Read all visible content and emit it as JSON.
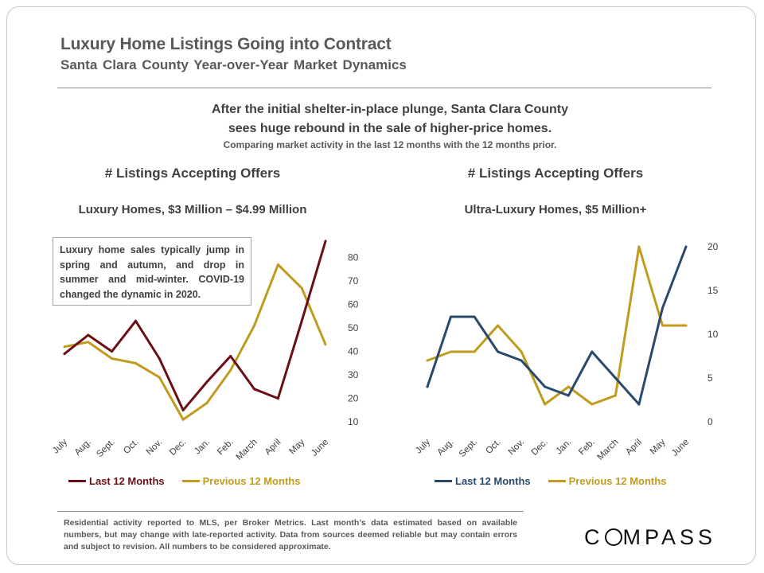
{
  "header": {
    "title": "Luxury Home Listings Going into Contract",
    "subtitle": "Santa Clara County Year-over-Year Market Dynamics"
  },
  "headline": {
    "line1": "After the initial shelter-in-place plunge, Santa Clara County",
    "line2": "sees huge rebound in the sale of higher-price homes.",
    "note": "Comparing market activity in the last 12 months with the 12 months prior."
  },
  "note_box": "Luxury home sales typically jump in spring and autumn, and drop in summer and mid-winter. COVID-19 changed the dynamic in 2020.",
  "footer": "Residential activity reported to MLS, per Broker Metrics. Last month’s data estimated based on available numbers, but may change with late-reported activity. Data from sources deemed reliable but may contain errors and subject to revision. All numbers to be considered approximate.",
  "logo": {
    "part1": "C",
    "part2": "MPASS"
  },
  "colors": {
    "last_left": "#6b0f14",
    "previous": "#bf9b1f",
    "last_right": "#2a4a6b",
    "axis_text": "#404040"
  },
  "chart_data": [
    {
      "type": "line",
      "title": "# Listings Accepting Offers",
      "subtitle": "Luxury Homes, $3 Million – $4.99 Million",
      "categories": [
        "July",
        "Aug.",
        "Sept.",
        "Oct.",
        "Nov.",
        "Dec.",
        "Jan.",
        "Feb.",
        "March",
        "April",
        "May",
        "June"
      ],
      "series": [
        {
          "name": "Last 12 Months",
          "color": "#6b0f14",
          "values": [
            39,
            47,
            40,
            53,
            37,
            15,
            27,
            38,
            24,
            20,
            53,
            87
          ]
        },
        {
          "name": "Previous 12 Months",
          "color": "#bf9b1f",
          "values": [
            42,
            44,
            37,
            35,
            29,
            11,
            18,
            32,
            51,
            77,
            67,
            43
          ]
        }
      ],
      "yticks": [
        10,
        20,
        30,
        40,
        50,
        60,
        70,
        80
      ],
      "ylim": [
        7,
        88
      ],
      "y_axis_side": "right",
      "grid": false,
      "legend": "bottom"
    },
    {
      "type": "line",
      "title": "# Listings Accepting Offers",
      "subtitle": "Ultra-Luxury Homes, $5 Million+",
      "categories": [
        "July",
        "Aug.",
        "Sept.",
        "Oct.",
        "Nov.",
        "Dec.",
        "Jan.",
        "Feb.",
        "March",
        "April",
        "May",
        "June"
      ],
      "series": [
        {
          "name": "Last 12 Months",
          "color": "#2a4a6b",
          "values": [
            4,
            12,
            12,
            8,
            7,
            4,
            3,
            8,
            5,
            2,
            13,
            20
          ]
        },
        {
          "name": "Previous 12 Months",
          "color": "#bf9b1f",
          "values": [
            7,
            8,
            8,
            11,
            8,
            2,
            4,
            2,
            3,
            20,
            11,
            11
          ]
        }
      ],
      "yticks": [
        0,
        5,
        10,
        15,
        20
      ],
      "ylim": [
        0,
        20
      ],
      "y_axis_side": "right",
      "grid": false,
      "legend": "bottom"
    }
  ]
}
